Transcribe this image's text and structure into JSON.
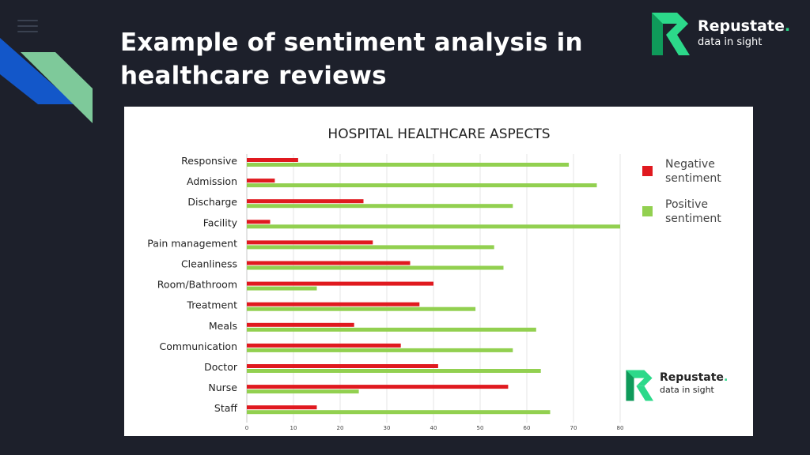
{
  "slide": {
    "title": "Example of sentiment analysis in healthcare reviews"
  },
  "brand": {
    "name": "Repustate",
    "dot": ".",
    "tagline": "data in sight",
    "accent_color": "#2cd98a"
  },
  "colors": {
    "background": "#1d202b",
    "negative": "#e0191f",
    "positive": "#92d050",
    "deco_blue": "#1357c9",
    "deco_green": "#7ec99a"
  },
  "icons": [
    "menu-icon",
    "repustate-logo-icon"
  ],
  "chart_data": {
    "type": "bar",
    "orientation": "horizontal",
    "title": "HOSPITAL HEALTHCARE ASPECTS",
    "categories": [
      "Responsive",
      "Admission",
      "Discharge",
      "Facility",
      "Pain management",
      "Cleanliness",
      "Room/Bathroom",
      "Treatment",
      "Meals",
      "Communication",
      "Doctor",
      "Nurse",
      "Staff"
    ],
    "series": [
      {
        "name": "Negative sentiment",
        "color": "#e0191f",
        "values": [
          11,
          6,
          25,
          5,
          27,
          35,
          40,
          37,
          23,
          33,
          41,
          56,
          15
        ]
      },
      {
        "name": "Positive sentiment",
        "color": "#92d050",
        "values": [
          69,
          75,
          57,
          80,
          53,
          55,
          15,
          49,
          62,
          57,
          63,
          24,
          65
        ]
      }
    ],
    "xlim": [
      0,
      80
    ],
    "xticks": [
      0,
      10,
      20,
      30,
      40,
      50,
      60,
      70,
      80
    ],
    "grid": true,
    "legend_position": "right"
  }
}
